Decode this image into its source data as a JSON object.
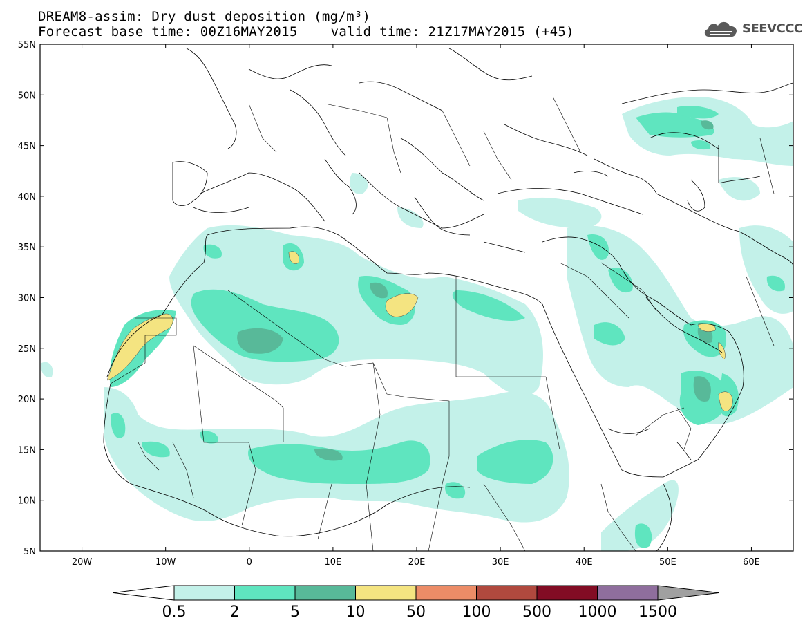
{
  "title": {
    "line1": "DREAM8-assim: Dry dust deposition (mg/m³)",
    "line2_base": "Forecast base time: 00Z16MAY2015",
    "line2_valid": "valid time: 21Z17MAY2015 (+45)"
  },
  "logo": {
    "text": "SEEVCCC",
    "icon": "cloud-logo-icon",
    "color": "#505050"
  },
  "map": {
    "lon_range": [
      -25,
      65
    ],
    "lat_range": [
      5,
      55
    ],
    "lat_ticks": [
      {
        "value": 55,
        "label": "55N"
      },
      {
        "value": 50,
        "label": "50N"
      },
      {
        "value": 45,
        "label": "45N"
      },
      {
        "value": 40,
        "label": "40N"
      },
      {
        "value": 35,
        "label": "35N"
      },
      {
        "value": 30,
        "label": "30N"
      },
      {
        "value": 25,
        "label": "25N"
      },
      {
        "value": 20,
        "label": "20N"
      },
      {
        "value": 15,
        "label": "15N"
      },
      {
        "value": 10,
        "label": "10N"
      },
      {
        "value": 5,
        "label": "5N"
      }
    ],
    "lon_ticks": [
      {
        "value": -20,
        "label": "20W"
      },
      {
        "value": -10,
        "label": "10W"
      },
      {
        "value": 0,
        "label": "0"
      },
      {
        "value": 10,
        "label": "10E"
      },
      {
        "value": 20,
        "label": "20E"
      },
      {
        "value": 30,
        "label": "30E"
      },
      {
        "value": 40,
        "label": "40E"
      },
      {
        "value": 50,
        "label": "50E"
      },
      {
        "value": 60,
        "label": "60E"
      }
    ]
  },
  "colorbar": {
    "labels": [
      "0.5",
      "2",
      "5",
      "10",
      "50",
      "100",
      "500",
      "1000",
      "1500"
    ],
    "colors": [
      "#c3f1e9",
      "#5fe5bf",
      "#58b999",
      "#f4e481",
      "#ec8c67",
      "#b0493e",
      "#820c24",
      "#8f6e9d"
    ],
    "under_color": "#ffffff",
    "over_color": "#a0a0a0"
  },
  "dust_levels": {
    "0.5": "#c3f1e9",
    "2": "#5fe5bf",
    "5": "#58b999",
    "10": "#f4e481"
  }
}
